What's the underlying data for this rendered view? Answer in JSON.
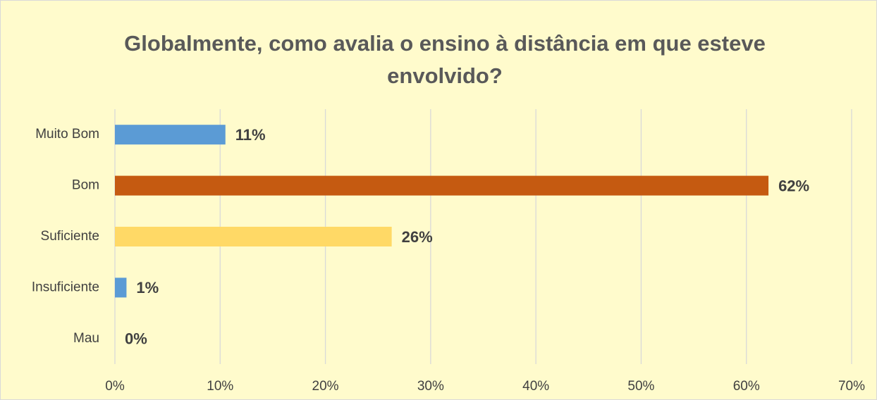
{
  "chart_data": {
    "type": "barh",
    "title": "Globalmente, como avalia o ensino à distância em que esteve envolvido?",
    "categories": [
      "Muito Bom",
      "Bom",
      "Suficiente",
      "Insuficiente",
      "Mau"
    ],
    "values": [
      10.5,
      62.1,
      26.3,
      1.1,
      0
    ],
    "value_labels": [
      "11%",
      "62%",
      "26%",
      "1%",
      "0%"
    ],
    "colors": [
      "#5b9bd5",
      "#c55a11",
      "#ffd966",
      "#5b9bd5",
      "#5b9bd5"
    ],
    "xlim": [
      0,
      70
    ],
    "xticks": [
      {
        "value": 0,
        "label": "0%"
      },
      {
        "value": 10,
        "label": "10%"
      },
      {
        "value": 20,
        "label": "20%"
      },
      {
        "value": 30,
        "label": "30%"
      },
      {
        "value": 40,
        "label": "40%"
      },
      {
        "value": 50,
        "label": "50%"
      },
      {
        "value": 60,
        "label": "60%"
      },
      {
        "value": 70,
        "label": "70%"
      }
    ],
    "grid": true
  }
}
